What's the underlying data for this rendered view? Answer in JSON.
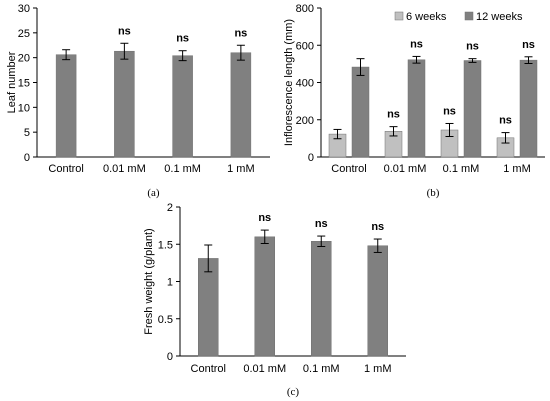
{
  "chart_data": [
    {
      "panel": "(a)",
      "type": "bar",
      "categories": [
        "Control",
        "0.01 mM",
        "0.1 mM",
        "1 mM"
      ],
      "series": [
        {
          "values": [
            20.6,
            21.3,
            20.4,
            21.0
          ],
          "errors": [
            1.0,
            1.6,
            1.0,
            1.5
          ],
          "color": "#808080"
        }
      ],
      "annotations": [
        "",
        "ns",
        "ns",
        "ns"
      ],
      "ylabel": "Leaf number",
      "ylim": [
        0,
        30
      ],
      "yticks": [
        0,
        5,
        10,
        15,
        20,
        25,
        30
      ],
      "grid": false
    },
    {
      "panel": "(b)",
      "type": "bar",
      "categories": [
        "Control",
        "0.01 mM",
        "0.1 mM",
        "1 mM"
      ],
      "series": [
        {
          "name": "6 weeks",
          "values": [
            123,
            138,
            145,
            103
          ],
          "errors": [
            25,
            25,
            35,
            28
          ],
          "color": "#c0c0c0",
          "annotations": [
            "",
            "ns",
            "ns",
            "ns"
          ]
        },
        {
          "name": "12 weeks",
          "values": [
            483,
            522,
            518,
            520
          ],
          "errors": [
            45,
            18,
            10,
            18
          ],
          "color": "#808080",
          "annotations": [
            "",
            "ns",
            "ns",
            "ns"
          ]
        }
      ],
      "ylabel": "Inflorescence length (mm)",
      "ylim": [
        0,
        800
      ],
      "yticks": [
        0,
        200,
        400,
        600,
        800
      ],
      "legend": "top-right",
      "grid": false
    },
    {
      "panel": "(c)",
      "type": "bar",
      "categories": [
        "Control",
        "0.01 mM",
        "0.1 mM",
        "1 mM"
      ],
      "series": [
        {
          "values": [
            1.31,
            1.6,
            1.54,
            1.48
          ],
          "errors": [
            0.18,
            0.09,
            0.07,
            0.09
          ],
          "color": "#808080"
        }
      ],
      "annotations": [
        "",
        "ns",
        "ns",
        "ns"
      ],
      "ylabel": "Fresh weight (g/plant)",
      "ylim": [
        0,
        2
      ],
      "yticks": [
        0,
        0.5,
        1,
        1.5,
        2
      ],
      "grid": false
    }
  ]
}
